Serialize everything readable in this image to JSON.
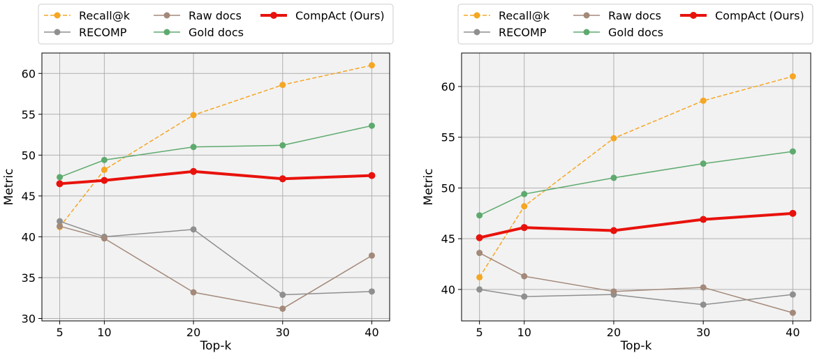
{
  "chart_data": [
    {
      "type": "line",
      "title": "",
      "xlabel": "Top-k",
      "ylabel": "Metric",
      "x": [
        5,
        10,
        20,
        30,
        40
      ],
      "xticks": [
        5,
        10,
        20,
        30,
        40
      ],
      "xlim": [
        3,
        42
      ],
      "ylim": [
        29.7,
        62.5
      ],
      "yticks": [
        30,
        35,
        40,
        45,
        50,
        55,
        60
      ],
      "grid": true,
      "legend_position": "top",
      "series": [
        {
          "name": "Recall@k",
          "values": [
            41.2,
            48.2,
            54.9,
            58.6,
            61.0
          ],
          "color": "#f5a623",
          "style": "dashed",
          "width": 1.5
        },
        {
          "name": "RECOMP",
          "values": [
            41.9,
            40.0,
            40.9,
            32.9,
            33.3
          ],
          "color": "#8f8f8f",
          "style": "solid",
          "width": 1.5
        },
        {
          "name": "Raw docs",
          "values": [
            41.3,
            39.8,
            33.2,
            31.2,
            37.7
          ],
          "color": "#a3897a",
          "style": "solid",
          "width": 1.5
        },
        {
          "name": "Gold docs",
          "values": [
            47.3,
            49.4,
            51.0,
            51.2,
            53.6
          ],
          "color": "#5eaa6e",
          "style": "solid",
          "width": 1.5
        },
        {
          "name": "CompAct (Ours)",
          "values": [
            46.5,
            46.9,
            48.0,
            47.1,
            47.5
          ],
          "color": "#e8120c",
          "style": "solid",
          "width": 4
        }
      ]
    },
    {
      "type": "line",
      "title": "",
      "xlabel": "Top-k",
      "ylabel": "Metric",
      "x": [
        5,
        10,
        20,
        30,
        40
      ],
      "xticks": [
        5,
        10,
        20,
        30,
        40
      ],
      "xlim": [
        3,
        42
      ],
      "ylim": [
        36.9,
        63.3
      ],
      "yticks": [
        40,
        45,
        50,
        55,
        60
      ],
      "grid": true,
      "legend_position": "top",
      "series": [
        {
          "name": "Recall@k",
          "values": [
            41.2,
            48.2,
            54.9,
            58.6,
            61.0
          ],
          "color": "#f5a623",
          "style": "dashed",
          "width": 1.5
        },
        {
          "name": "RECOMP",
          "values": [
            40.0,
            39.3,
            39.5,
            38.5,
            39.5
          ],
          "color": "#8f8f8f",
          "style": "solid",
          "width": 1.5
        },
        {
          "name": "Raw docs",
          "values": [
            43.6,
            41.3,
            39.8,
            40.2,
            37.7
          ],
          "color": "#a3897a",
          "style": "solid",
          "width": 1.5
        },
        {
          "name": "Gold docs",
          "values": [
            47.3,
            49.4,
            51.0,
            52.4,
            53.6
          ],
          "color": "#5eaa6e",
          "style": "solid",
          "width": 1.5
        },
        {
          "name": "CompAct (Ours)",
          "values": [
            45.1,
            46.1,
            45.8,
            46.9,
            47.5
          ],
          "color": "#e8120c",
          "style": "solid",
          "width": 4
        }
      ]
    }
  ]
}
